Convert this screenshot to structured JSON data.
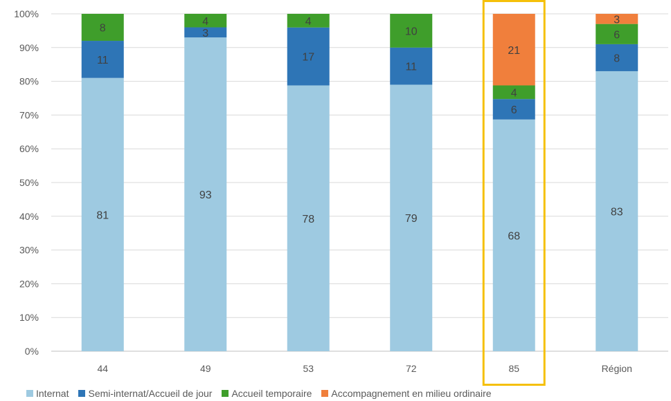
{
  "chart_data": {
    "type": "bar",
    "stacked": true,
    "percent_stacked": true,
    "categories": [
      "44",
      "49",
      "53",
      "72",
      "85",
      "Région"
    ],
    "series": [
      {
        "name": "Internat",
        "color": "#9ecae1",
        "values": [
          81,
          93,
          78,
          79,
          68,
          83
        ]
      },
      {
        "name": "Semi-internat/Accueil de jour",
        "color": "#2e75b6",
        "values": [
          11,
          3,
          17,
          11,
          6,
          8
        ]
      },
      {
        "name": "Accueil temporaire",
        "color": "#3f9e2b",
        "values": [
          8,
          4,
          4,
          10,
          4,
          6
        ]
      },
      {
        "name": "Accompagnement en milieu ordinaire",
        "color": "#f07f3c",
        "values": [
          0,
          0,
          0,
          0,
          21,
          3
        ]
      }
    ],
    "ylim": [
      0,
      100
    ],
    "yticks": [
      "0%",
      "10%",
      "20%",
      "30%",
      "40%",
      "50%",
      "60%",
      "70%",
      "80%",
      "90%",
      "100%"
    ],
    "highlight_category": "85",
    "highlight_color": "#f5c00a",
    "grid": true,
    "legend_position": "bottom"
  }
}
